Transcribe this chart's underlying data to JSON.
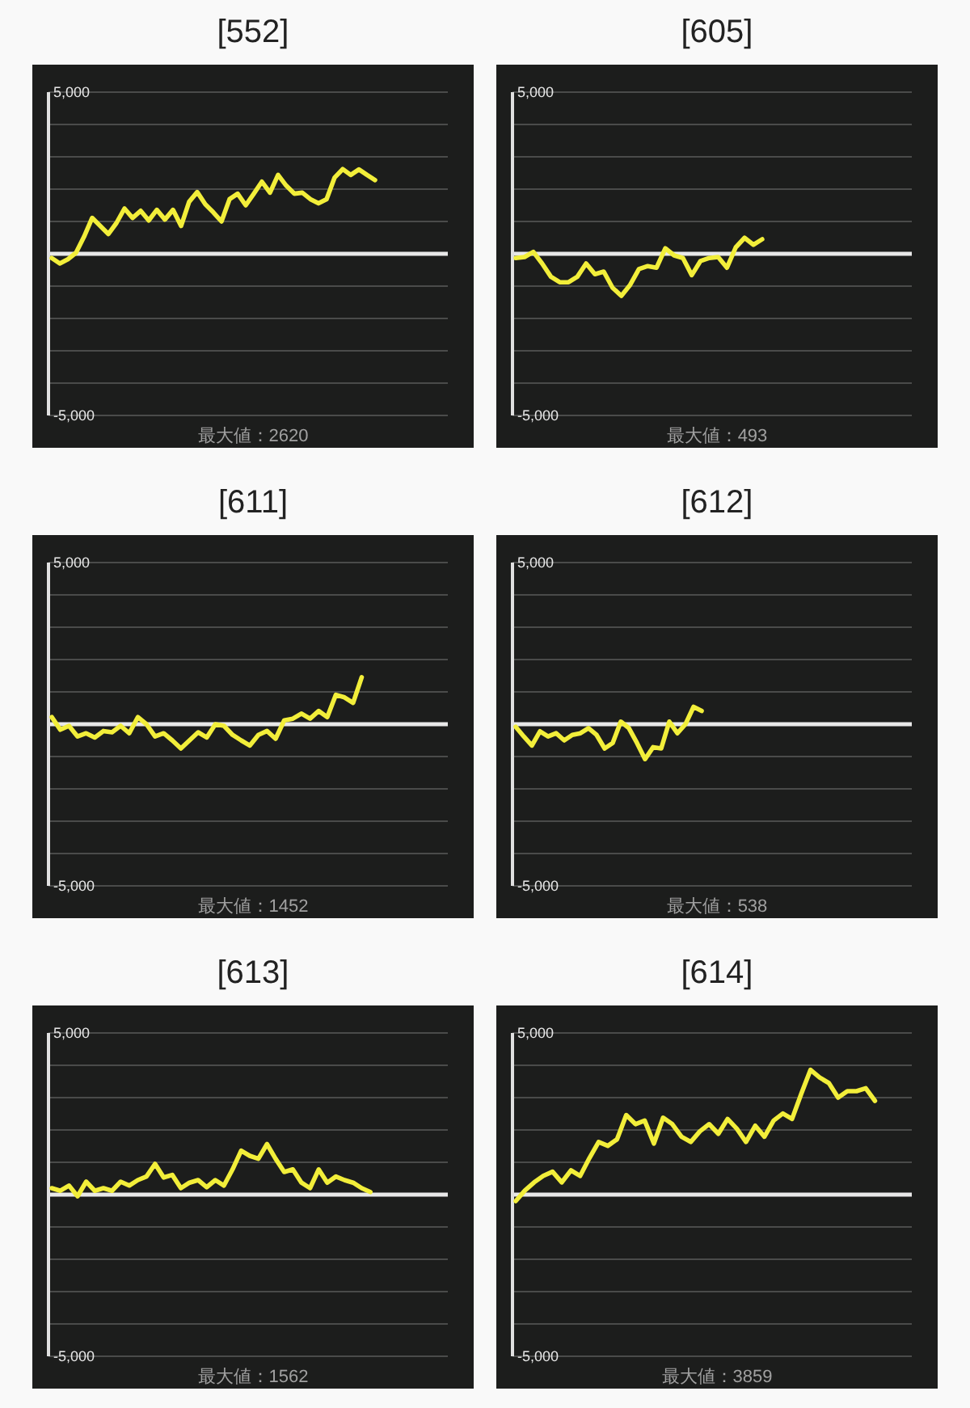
{
  "chart_data": [
    {
      "type": "line",
      "title": "[552]",
      "annotations": [
        "最大値：2620"
      ],
      "categories": [
        null,
        null,
        null,
        null,
        null,
        null,
        null,
        null,
        null,
        null,
        null,
        null,
        null,
        null,
        null,
        null,
        null,
        null,
        null,
        null,
        null,
        null,
        null,
        null,
        null,
        null,
        null,
        null,
        null,
        null,
        null,
        null,
        null,
        null,
        null,
        null,
        null,
        null,
        null,
        null,
        null,
        null,
        null,
        null,
        null,
        null,
        null,
        null,
        null,
        null
      ],
      "ylim": [
        -5000,
        5000
      ],
      "yticks": [
        {
          "value": 5000,
          "label": "5,000"
        },
        {
          "value": 4000,
          "label": null
        },
        {
          "value": 3000,
          "label": null
        },
        {
          "value": 2000,
          "label": null
        },
        {
          "value": 1000,
          "label": null
        },
        {
          "value": -1000,
          "label": null
        },
        {
          "value": -2000,
          "label": null
        },
        {
          "value": -3000,
          "label": null
        },
        {
          "value": -4000,
          "label": null
        },
        {
          "value": -5000,
          "label": "-5,000"
        }
      ],
      "grid": "y",
      "tick_labels": "y",
      "ref_lines": [
        {
          "axis": "y",
          "value": 0,
          "color": "#e8e8e8"
        }
      ],
      "series": [
        {
          "color": "#f2ee3a",
          "values": [
            -130,
            -300,
            -170,
            30,
            530,
            1110,
            860,
            610,
            950,
            1400,
            1110,
            1330,
            1030,
            1360,
            1060,
            1360,
            860,
            1610,
            1910,
            1530,
            1280,
            1000,
            1690,
            1860,
            1500,
            1860,
            2230,
            1890,
            2440,
            2110,
            1860,
            1890,
            1690,
            1560,
            1690,
            2360,
            2620,
            2440,
            2610,
            2440,
            2280,
            null,
            null,
            null,
            null,
            null,
            null,
            null,
            null,
            null
          ]
        }
      ]
    },
    {
      "type": "line",
      "title": "[605]",
      "annotations": [
        "最大値：493"
      ],
      "categories": [
        null,
        null,
        null,
        null,
        null,
        null,
        null,
        null,
        null,
        null,
        null,
        null,
        null,
        null,
        null,
        null,
        null,
        null,
        null,
        null,
        null,
        null,
        null,
        null,
        null,
        null,
        null,
        null,
        null,
        null,
        null,
        null,
        null,
        null,
        null,
        null,
        null,
        null,
        null,
        null,
        null,
        null,
        null,
        null,
        null,
        null
      ],
      "ylim": [
        -5000,
        5000
      ],
      "yticks": [
        {
          "value": 5000,
          "label": "5,000"
        },
        {
          "value": 4000,
          "label": null
        },
        {
          "value": 3000,
          "label": null
        },
        {
          "value": 2000,
          "label": null
        },
        {
          "value": 1000,
          "label": null
        },
        {
          "value": -1000,
          "label": null
        },
        {
          "value": -2000,
          "label": null
        },
        {
          "value": -3000,
          "label": null
        },
        {
          "value": -4000,
          "label": null
        },
        {
          "value": -5000,
          "label": "-5,000"
        }
      ],
      "grid": "y",
      "tick_labels": "y",
      "ref_lines": [
        {
          "axis": "y",
          "value": 0,
          "color": "#e8e8e8"
        }
      ],
      "series": [
        {
          "color": "#f2ee3a",
          "values": [
            -130,
            -100,
            60,
            -300,
            -710,
            -880,
            -880,
            -710,
            -300,
            -630,
            -550,
            -1050,
            -1300,
            -960,
            -470,
            -380,
            -430,
            170,
            -50,
            -130,
            -660,
            -220,
            -130,
            -100,
            -430,
            200,
            493,
            280,
            450,
            null,
            null,
            null,
            null,
            null,
            null,
            null,
            null,
            null,
            null,
            null,
            null,
            null,
            null,
            null,
            null,
            null
          ]
        }
      ]
    },
    {
      "type": "line",
      "title": "[611]",
      "annotations": [
        "最大値：1452"
      ],
      "categories": [
        null,
        null,
        null,
        null,
        null,
        null,
        null,
        null,
        null,
        null,
        null,
        null,
        null,
        null,
        null,
        null,
        null,
        null,
        null,
        null,
        null,
        null,
        null,
        null,
        null,
        null,
        null,
        null,
        null,
        null,
        null,
        null,
        null,
        null,
        null,
        null,
        null,
        null,
        null,
        null,
        null,
        null,
        null,
        null,
        null,
        null,
        null
      ],
      "ylim": [
        -5000,
        5000
      ],
      "yticks": [
        {
          "value": 5000,
          "label": "5,000"
        },
        {
          "value": 4000,
          "label": null
        },
        {
          "value": 3000,
          "label": null
        },
        {
          "value": 2000,
          "label": null
        },
        {
          "value": 1000,
          "label": null
        },
        {
          "value": -1000,
          "label": null
        },
        {
          "value": -2000,
          "label": null
        },
        {
          "value": -3000,
          "label": null
        },
        {
          "value": -4000,
          "label": null
        },
        {
          "value": -5000,
          "label": "-5,000"
        }
      ],
      "grid": "y",
      "tick_labels": "y",
      "ref_lines": [
        {
          "axis": "y",
          "value": 0,
          "color": "#e8e8e8"
        }
      ],
      "series": [
        {
          "color": "#f2ee3a",
          "values": [
            220,
            -170,
            -50,
            -380,
            -280,
            -410,
            -210,
            -250,
            -50,
            -280,
            220,
            0,
            -380,
            -280,
            -500,
            -750,
            -500,
            -250,
            -410,
            0,
            -50,
            -330,
            -500,
            -660,
            -330,
            -210,
            -450,
            120,
            170,
            330,
            170,
            410,
            220,
            910,
            830,
            660,
            1452,
            null,
            null,
            null,
            null,
            null,
            null,
            null,
            null,
            null,
            null
          ]
        }
      ]
    },
    {
      "type": "line",
      "title": "[612]",
      "annotations": [
        "最大値：538"
      ],
      "categories": [
        null,
        null,
        null,
        null,
        null,
        null,
        null,
        null,
        null,
        null,
        null,
        null,
        null,
        null,
        null,
        null,
        null,
        null,
        null,
        null,
        null,
        null,
        null,
        null,
        null,
        null,
        null,
        null,
        null,
        null,
        null,
        null,
        null,
        null,
        null,
        null,
        null,
        null,
        null,
        null,
        null,
        null,
        null,
        null,
        null,
        null,
        null,
        null,
        null,
        null
      ],
      "ylim": [
        -5000,
        5000
      ],
      "yticks": [
        {
          "value": 5000,
          "label": "5,000"
        },
        {
          "value": 4000,
          "label": null
        },
        {
          "value": 3000,
          "label": null
        },
        {
          "value": 2000,
          "label": null
        },
        {
          "value": 1000,
          "label": null
        },
        {
          "value": -1000,
          "label": null
        },
        {
          "value": -2000,
          "label": null
        },
        {
          "value": -3000,
          "label": null
        },
        {
          "value": -4000,
          "label": null
        },
        {
          "value": -5000,
          "label": "-5,000"
        }
      ],
      "grid": "y",
      "tick_labels": "y",
      "ref_lines": [
        {
          "axis": "y",
          "value": 0,
          "color": "#e8e8e8"
        }
      ],
      "series": [
        {
          "color": "#f2ee3a",
          "values": [
            -80,
            -380,
            -660,
            -220,
            -380,
            -280,
            -500,
            -330,
            -280,
            -120,
            -330,
            -750,
            -580,
            80,
            -120,
            -580,
            -1080,
            -710,
            -750,
            80,
            -280,
            0,
            538,
            410,
            null,
            null,
            null,
            null,
            null,
            null,
            null,
            null,
            null,
            null,
            null,
            null,
            null,
            null,
            null,
            null,
            null,
            null,
            null,
            null,
            null,
            null,
            null,
            null,
            null,
            null
          ]
        }
      ]
    },
    {
      "type": "line",
      "title": "[613]",
      "annotations": [
        "最大値：1562"
      ],
      "categories": [
        null,
        null,
        null,
        null,
        null,
        null,
        null,
        null,
        null,
        null,
        null,
        null,
        null,
        null,
        null,
        null,
        null,
        null,
        null,
        null,
        null,
        null,
        null,
        null,
        null,
        null,
        null,
        null,
        null,
        null,
        null,
        null,
        null,
        null,
        null,
        null,
        null,
        null,
        null,
        null,
        null,
        null,
        null,
        null,
        null,
        null,
        null
      ],
      "ylim": [
        -5000,
        5000
      ],
      "yticks": [
        {
          "value": 5000,
          "label": "5,000"
        },
        {
          "value": 4000,
          "label": null
        },
        {
          "value": 3000,
          "label": null
        },
        {
          "value": 2000,
          "label": null
        },
        {
          "value": 1000,
          "label": null
        },
        {
          "value": -1000,
          "label": null
        },
        {
          "value": -2000,
          "label": null
        },
        {
          "value": -3000,
          "label": null
        },
        {
          "value": -4000,
          "label": null
        },
        {
          "value": -5000,
          "label": "-5,000"
        }
      ],
      "grid": "y",
      "tick_labels": "y",
      "ref_lines": [
        {
          "axis": "y",
          "value": 0,
          "color": "#e8e8e8"
        }
      ],
      "series": [
        {
          "color": "#f2ee3a",
          "values": [
            200,
            120,
            280,
            -50,
            400,
            120,
            200,
            120,
            400,
            280,
            450,
            560,
            950,
            530,
            610,
            200,
            370,
            450,
            230,
            450,
            280,
            780,
            1360,
            1200,
            1110,
            1562,
            1110,
            700,
            780,
            370,
            200,
            780,
            370,
            560,
            450,
            370,
            200,
            80,
            null,
            null,
            null,
            null,
            null,
            null,
            null,
            null,
            null
          ]
        }
      ]
    },
    {
      "type": "line",
      "title": "[614]",
      "annotations": [
        "最大値：3859"
      ],
      "categories": [
        null,
        null,
        null,
        null,
        null,
        null,
        null,
        null,
        null,
        null,
        null,
        null,
        null,
        null,
        null,
        null,
        null,
        null,
        null,
        null,
        null,
        null,
        null,
        null,
        null,
        null,
        null,
        null,
        null,
        null,
        null,
        null,
        null,
        null,
        null,
        null,
        null,
        null,
        null,
        null,
        null,
        null,
        null,
        null
      ],
      "ylim": [
        -5000,
        5000
      ],
      "yticks": [
        {
          "value": 5000,
          "label": "5,000"
        },
        {
          "value": 4000,
          "label": null
        },
        {
          "value": 3000,
          "label": null
        },
        {
          "value": 2000,
          "label": null
        },
        {
          "value": 1000,
          "label": null
        },
        {
          "value": -1000,
          "label": null
        },
        {
          "value": -2000,
          "label": null
        },
        {
          "value": -3000,
          "label": null
        },
        {
          "value": -4000,
          "label": null
        },
        {
          "value": -5000,
          "label": "-5,000"
        }
      ],
      "grid": "y",
      "tick_labels": "y",
      "ref_lines": [
        {
          "axis": "y",
          "value": 0,
          "color": "#e8e8e8"
        }
      ],
      "series": [
        {
          "color": "#f2ee3a",
          "values": [
            -200,
            130,
            380,
            580,
            710,
            380,
            750,
            580,
            1130,
            1630,
            1510,
            1710,
            2460,
            2180,
            2290,
            1580,
            2380,
            2180,
            1790,
            1630,
            1960,
            2180,
            1880,
            2340,
            2040,
            1630,
            2130,
            1790,
            2290,
            2510,
            2340,
            3120,
            3859,
            3620,
            3450,
            3000,
            3200,
            3200,
            3290,
            2900,
            null,
            null,
            null,
            null
          ]
        }
      ]
    }
  ]
}
